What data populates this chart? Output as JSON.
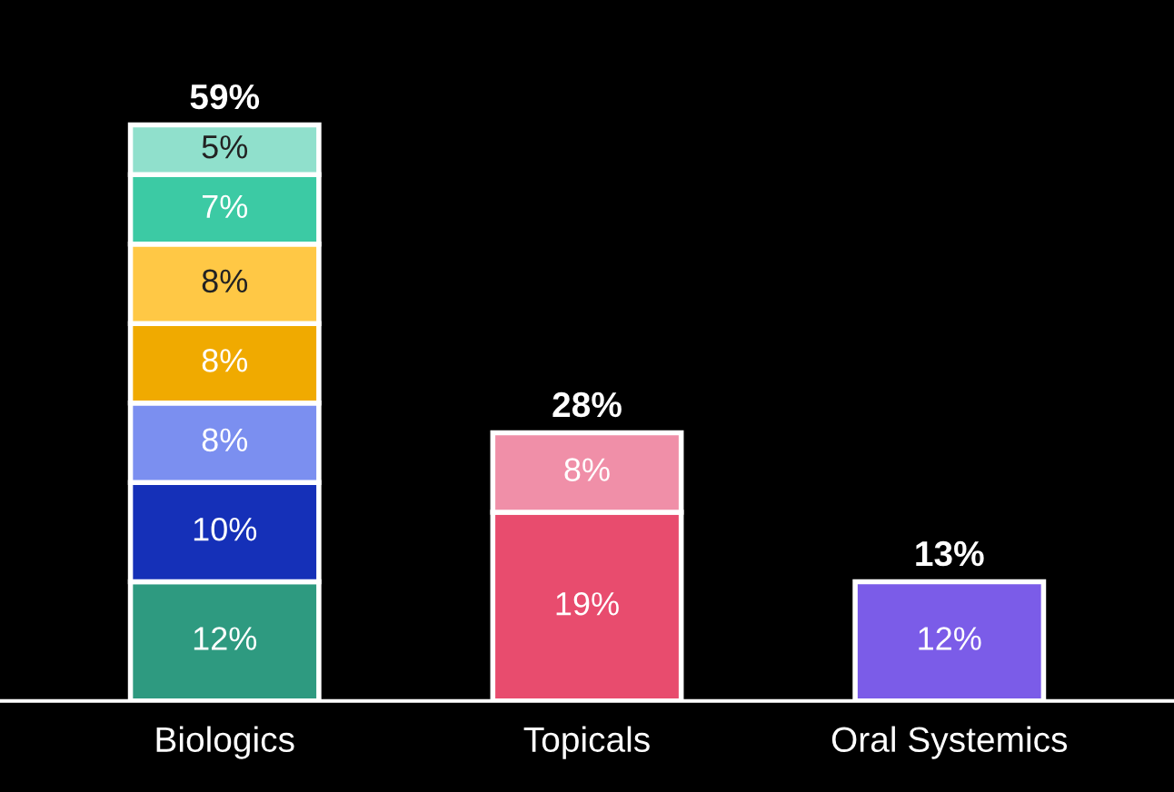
{
  "chart_data": {
    "type": "bar",
    "stacked": true,
    "categories": [
      "Biologics",
      "Topicals",
      "Oral Systemics"
    ],
    "series": [
      {
        "values": [
          12,
          19,
          12
        ],
        "colors": [
          "#2e9a80",
          "#e84c6e",
          "#7b5ce8"
        ],
        "value_labels": [
          "12%",
          "19%",
          "12%"
        ]
      },
      {
        "values": [
          10,
          8,
          null
        ],
        "colors": [
          "#1530b8",
          "#f08fa8",
          null
        ],
        "value_labels": [
          "10%",
          "8%",
          null
        ]
      },
      {
        "values": [
          8,
          null,
          null
        ],
        "colors": [
          "#7b8ff0",
          null,
          null
        ],
        "value_labels": [
          "8%",
          null,
          null
        ]
      },
      {
        "values": [
          8,
          null,
          null
        ],
        "colors": [
          "#f0aa00",
          null,
          null
        ],
        "value_labels": [
          "8%",
          null,
          null
        ]
      },
      {
        "values": [
          8,
          null,
          null
        ],
        "colors": [
          "#ffc845",
          null,
          null
        ],
        "value_labels": [
          "8%",
          null,
          null
        ]
      },
      {
        "values": [
          7,
          null,
          null
        ],
        "colors": [
          "#3ccaa4",
          null,
          null
        ],
        "value_labels": [
          "7%",
          null,
          null
        ]
      },
      {
        "values": [
          5,
          null,
          null
        ],
        "colors": [
          "#90e0cc",
          null,
          null
        ],
        "value_labels": [
          "5%",
          null,
          null
        ]
      }
    ],
    "totals": [
      "59%",
      "28%",
      "13%"
    ],
    "grid": false,
    "legend": false
  }
}
